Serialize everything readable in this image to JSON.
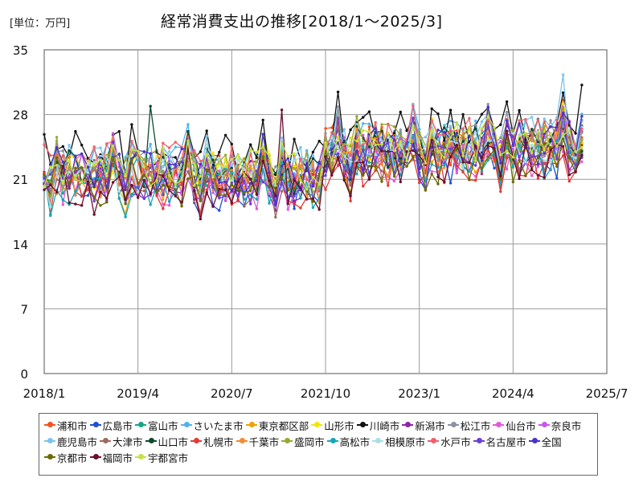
{
  "page": {
    "unit_label": "[単位：万円]",
    "title": "経常消費支出の推移[2018/1～2025/3]"
  },
  "chart_data": {
    "type": "line",
    "title": "経常消費支出の推移[2018/1～2025/3]",
    "unit": "[単位：万円]",
    "x_start": "2018/1",
    "x_end": "2025/7",
    "x_ticks": [
      "2018/1",
      "2019/4",
      "2020/7",
      "2021/10",
      "2023/1",
      "2024/4",
      "2025/7"
    ],
    "ylim": [
      0,
      35
    ],
    "y_ticks": [
      0,
      7,
      14,
      21,
      28,
      35
    ],
    "grid": true,
    "legend_position": "bottom",
    "series_note": "Monthly values 2018/1–2025/3 per city",
    "series": [
      {
        "name": "浦和市",
        "color": "#f4511e"
      },
      {
        "name": "広島市",
        "color": "#1e4fd8"
      },
      {
        "name": "富山市",
        "color": "#17a589"
      },
      {
        "name": "さいたま市",
        "color": "#4fb3e8"
      },
      {
        "name": "東京都区部",
        "color": "#f0a000"
      },
      {
        "name": "山形市",
        "color": "#f2e600"
      },
      {
        "name": "川崎市",
        "color": "#111111"
      },
      {
        "name": "新潟市",
        "color": "#8e24aa"
      },
      {
        "name": "松江市",
        "color": "#8a93a6"
      },
      {
        "name": "仙台市",
        "color": "#e35ad8"
      },
      {
        "name": "奈良市",
        "color": "#c45ae8"
      },
      {
        "name": "鹿児島市",
        "color": "#7cc4ee"
      },
      {
        "name": "大津市",
        "color": "#9c6b5e"
      },
      {
        "name": "山口市",
        "color": "#0b4a2e"
      },
      {
        "name": "札幌市",
        "color": "#e53935"
      },
      {
        "name": "千葉市",
        "color": "#f58a32"
      },
      {
        "name": "盛岡市",
        "color": "#9aa832"
      },
      {
        "name": "高松市",
        "color": "#13a8b8"
      },
      {
        "name": "相模原市",
        "color": "#a8dfe8"
      },
      {
        "name": "水戸市",
        "color": "#f0606a"
      },
      {
        "name": "名古屋市",
        "color": "#6b3fd8"
      },
      {
        "name": "全国",
        "color": "#4a33c8"
      },
      {
        "name": "京都市",
        "color": "#6b6b00"
      },
      {
        "name": "福岡市",
        "color": "#6b0f2e"
      },
      {
        "name": "宇都宮市",
        "color": "#c8e040"
      }
    ]
  }
}
